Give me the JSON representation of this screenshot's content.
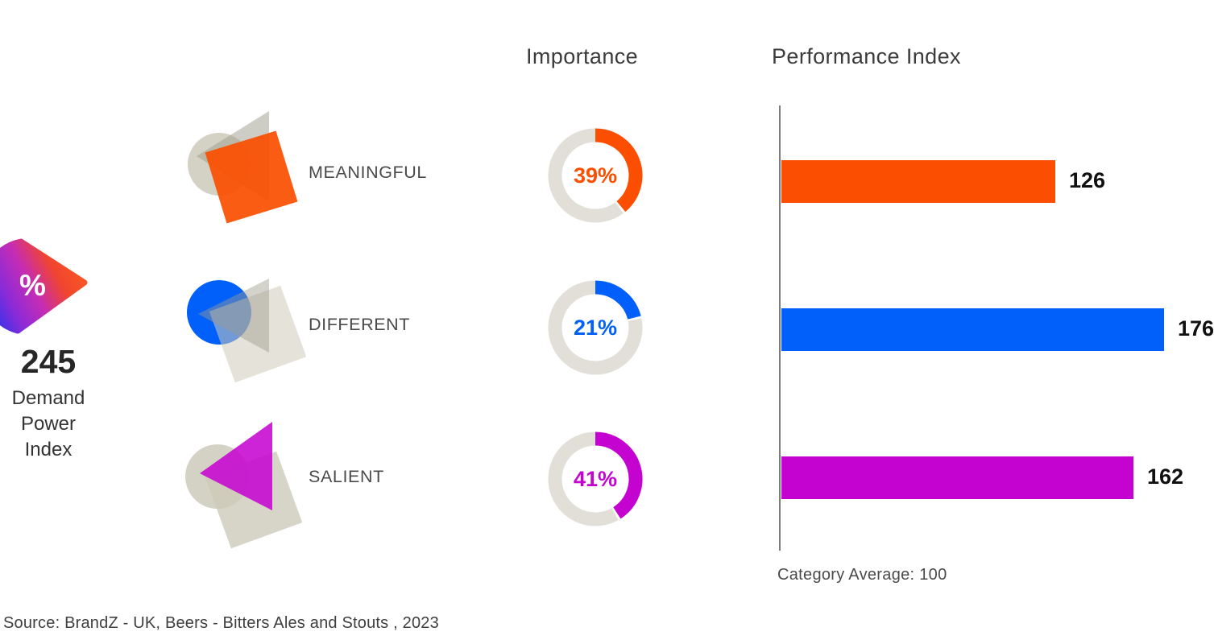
{
  "demand_power": {
    "icon": "percent-slice-icon",
    "percent_symbol": "%",
    "value": "245",
    "label_lines": [
      "Demand",
      "Power",
      "Index"
    ],
    "gradient": [
      "#2433EB",
      "#8A2BD8",
      "#C62CB4",
      "#F0452E",
      "#FA5A25"
    ]
  },
  "columns": {
    "importance": "Importance",
    "performance": "Performance Index"
  },
  "categories": [
    {
      "name": "MEANINGFUL",
      "icon": "meaningful-shapes-icon",
      "highlight_shape": "square",
      "color": "#FB4E00",
      "importance_pct": 39,
      "importance_label": "39%",
      "performance_index": 126
    },
    {
      "name": "DIFFERENT",
      "icon": "different-shapes-icon",
      "highlight_shape": "circle",
      "color": "#0160F9",
      "importance_pct": 21,
      "importance_label": "21%",
      "performance_index": 176
    },
    {
      "name": "SALIENT",
      "icon": "salient-shapes-icon",
      "highlight_shape": "triangle",
      "color": "#C503D1",
      "importance_pct": 41,
      "importance_label": "41%",
      "performance_index": 162
    }
  ],
  "performance_axis": {
    "note": "Category Average: 100",
    "category_average": 100
  },
  "source": "Source: BrandZ - UK, Beers - Bitters Ales and Stouts , 2023",
  "neutral_colors": {
    "donut_track": "#E1DFD7",
    "shape_beige": "#CDCABA",
    "shape_gray": "#9D9B8B",
    "axis": "#7E7E7E"
  },
  "chart_data": [
    {
      "type": "pie",
      "subtype": "donut",
      "title": "Importance",
      "categories": [
        "MEANINGFUL",
        "DIFFERENT",
        "SALIENT"
      ],
      "values": [
        39,
        21,
        41
      ],
      "unit": "%",
      "colors": [
        "#FB4E00",
        "#0160F9",
        "#C503D1"
      ],
      "track_color": "#E1DFD7",
      "labels_inside": true,
      "layout": "three separate donut gauges, one per category, arc starts at 12 o'clock clockwise"
    },
    {
      "type": "bar",
      "orientation": "horizontal",
      "title": "Performance Index",
      "categories": [
        "MEANINGFUL",
        "DIFFERENT",
        "SALIENT"
      ],
      "values": [
        126,
        176,
        162
      ],
      "data_labels": [
        "126",
        "176",
        "162"
      ],
      "colors": [
        "#FB4E00",
        "#0160F9",
        "#C503D1"
      ],
      "baseline": 0,
      "annotation": "Category Average: 100",
      "grid": false,
      "legend": false
    }
  ]
}
